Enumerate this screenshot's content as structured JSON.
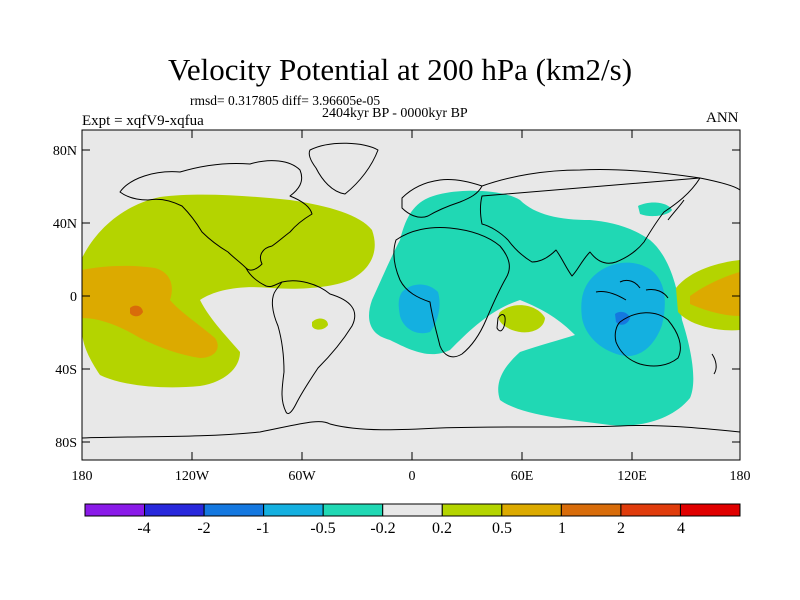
{
  "title": "Velocity Potential at 200 hPa (km2/s)",
  "stats": "rmsd= 0.317805 diff= 3.96605e-05",
  "period": "2404kyr BP - 0000kyr BP",
  "experiment": "Expt = xqfV9-xqfua",
  "season": "ANN",
  "map": {
    "lat_labels": [
      "80N",
      "40N",
      "0",
      "40S",
      "80S"
    ],
    "lon_labels": [
      "180",
      "120W",
      "60W",
      "0",
      "60E",
      "120E",
      "180"
    ],
    "fill_colors": {
      "background": "#e8e8e8",
      "pos_0_2_to_0_5": "#b4d400",
      "pos_0_5_to_1": "#dcaa00",
      "pos_1_to_2": "#d86c0a",
      "neg_0_2_to_0_5": "#20d8b4",
      "neg_0_5_to_1": "#14b0e0",
      "neg_1_to_2": "#1478e0"
    }
  },
  "colorbar": {
    "colors": [
      "#8a1ae8",
      "#2828dc",
      "#1478e0",
      "#14b0e0",
      "#20d8b4",
      "#e8e8e8",
      "#b4d400",
      "#dcaa00",
      "#d86c0a",
      "#e03c0c",
      "#e00000"
    ],
    "labels": [
      "-4",
      "-2",
      "-1",
      "-0.5",
      "-0.2",
      "0.2",
      "0.5",
      "1",
      "2",
      "4"
    ]
  }
}
